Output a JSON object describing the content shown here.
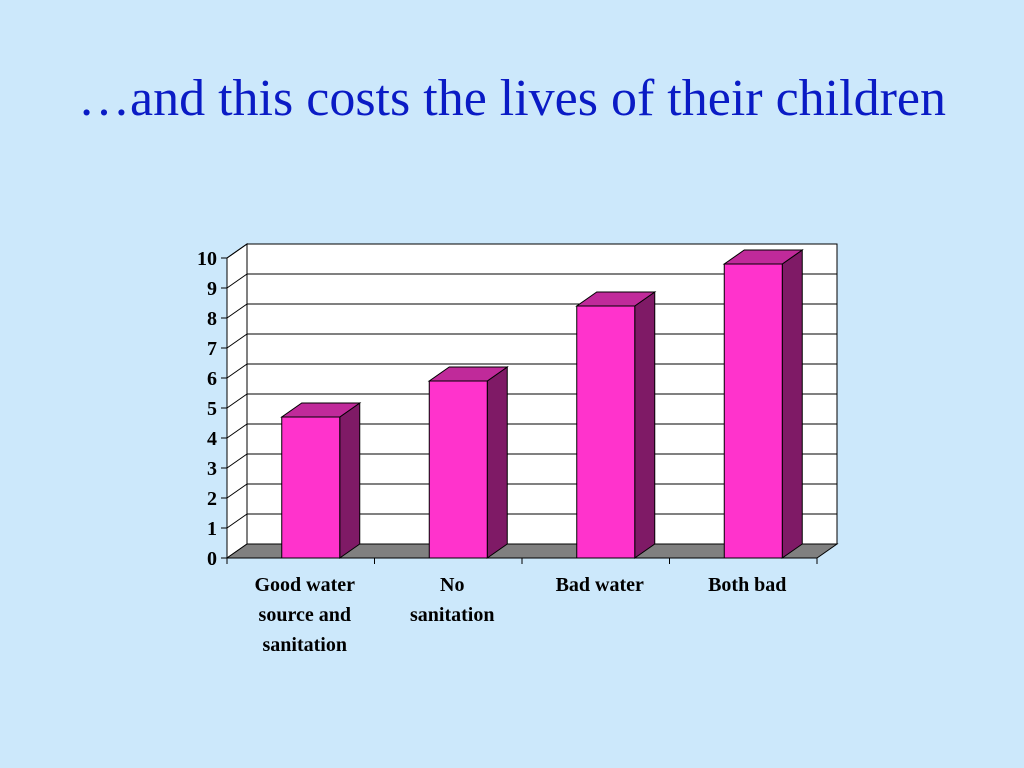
{
  "slide": {
    "title": "…and this costs the lives of their children"
  },
  "chart_data": {
    "type": "bar",
    "style": "3d-column",
    "title": "",
    "xlabel": "",
    "ylabel": "",
    "categories": [
      [
        "Good water",
        "source and",
        "sanitation"
      ],
      [
        "No",
        "sanitation"
      ],
      [
        "Bad water"
      ],
      [
        "Both bad"
      ]
    ],
    "values": [
      4.7,
      5.9,
      8.4,
      9.8
    ],
    "ylim": [
      0,
      10
    ],
    "yticks": [
      0,
      1,
      2,
      3,
      4,
      5,
      6,
      7,
      8,
      9,
      10
    ],
    "grid": true,
    "legend": "none",
    "colors": {
      "bar_front": "#ff33cc",
      "bar_side": "#7f1a66",
      "bar_top": "#c02a9a",
      "floor": "#808080",
      "wall": "#ffffff",
      "title": "#0a1bc5"
    }
  }
}
